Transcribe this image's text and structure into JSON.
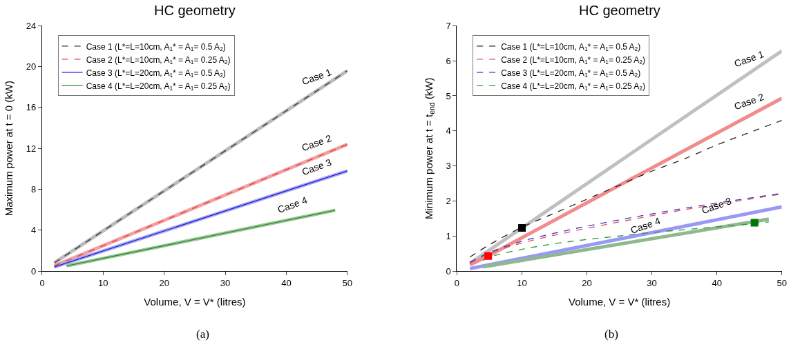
{
  "chart_data": [
    {
      "type": "line",
      "title": "HC geometry",
      "xlabel": "Volume, V = V* (litres)",
      "ylabel": "Maximum power at t = 0 (kW)",
      "xlim": [
        0,
        50
      ],
      "xticks": [
        0,
        10,
        20,
        30,
        40,
        50
      ],
      "ylim": [
        0,
        24
      ],
      "yticks": [
        0,
        4,
        8,
        12,
        16,
        20,
        24
      ],
      "legend": "top left",
      "annotations": [
        {
          "text": "Case 1",
          "x": 45,
          "y": 17.64
        },
        {
          "text": "Case 2",
          "x": 45,
          "y": 11.16
        },
        {
          "text": "Case 3",
          "x": 45,
          "y": 8.82
        },
        {
          "text": "Case 4",
          "x": 41,
          "y": 5.08
        },
        "(a)"
      ],
      "series": [
        {
          "color": "#bbbbbb",
          "x": [
            2,
            50
          ],
          "values": [
            0.8,
            19.6
          ]
        },
        {
          "color": "#f4a0a0",
          "x": [
            2,
            50
          ],
          "values": [
            0.5,
            12.4
          ]
        },
        {
          "color": "#a8a8f0",
          "x": [
            2,
            50
          ],
          "values": [
            0.4,
            9.8
          ]
        },
        {
          "color": "#9cc89c",
          "x": [
            4,
            48
          ],
          "values": [
            0.5,
            5.95
          ]
        },
        {
          "name": "Case 1 (L*=L=10cm, A$_{1}$* = A$_{1}$= 0.5 A$_{2}$)",
          "color": "#333333",
          "line_style": "dashed",
          "x": [
            2,
            50
          ],
          "values": [
            0.8,
            19.6
          ]
        },
        {
          "name": "Case 2 (L*=L=10cm, A$_{1}$* = A$_{1}$= 0.25 A$_{2}$)",
          "color": "#e04040",
          "line_style": "dashed",
          "x": [
            2,
            50
          ],
          "values": [
            0.5,
            12.4
          ]
        },
        {
          "name": "Case 3 (L*=L=20cm, A$_{1}$* = A$_{1}$= 0.5 A$_{2}$)",
          "color": "#2020dd",
          "line_style": "solid",
          "x": [
            2,
            50
          ],
          "values": [
            0.4,
            9.8
          ]
        },
        {
          "name": "Case 4 (L*=L=20cm, A$_{1}$* = A$_{1}$= 0.25 A$_{2}$)",
          "color": "#2e8b2e",
          "line_style": "solid",
          "x": [
            4,
            48
          ],
          "values": [
            0.5,
            5.95
          ]
        }
      ]
    },
    {
      "type": "line",
      "title": "HC geometry",
      "xlabel": "Volume, V = V* (litres)",
      "ylabel": "Minimum power at t = t$_{end}$ (kW)",
      "xlim": [
        0,
        50
      ],
      "xticks": [
        0,
        10,
        20,
        30,
        40,
        50
      ],
      "ylim": [
        0,
        7
      ],
      "yticks": [
        0,
        1,
        2,
        3,
        4,
        5,
        6,
        7
      ],
      "legend": "top left",
      "annotations": [
        {
          "text": "Case 1",
          "x": 45,
          "y": 5.65
        },
        {
          "text": "Case 2",
          "x": 45,
          "y": 4.43
        },
        {
          "text": "Case 3",
          "x": 40,
          "y": 1.46
        },
        {
          "text": "Case 4",
          "x": 29,
          "y": 0.89
        },
        "(b)"
      ],
      "series": [
        {
          "color": "#c0c0c0",
          "x": [
            2,
            10,
            30,
            50
          ],
          "values": [
            0.22,
            1.23,
            3.76,
            6.28
          ]
        },
        {
          "color": "#f28b8b",
          "x": [
            2,
            4.8,
            20,
            50
          ],
          "values": [
            0.18,
            0.43,
            1.95,
            4.93
          ]
        },
        {
          "color": "#9999f5",
          "x": [
            2,
            50
          ],
          "values": [
            0.07,
            1.83
          ]
        },
        {
          "color": "#8fb88f",
          "x": [
            4,
            48
          ],
          "values": [
            0.12,
            1.48
          ]
        },
        {
          "name": "Case 1 (L*=L=10cm, A$_{1}$* = A$_{1}$= 0.5 A$_{2}$)",
          "color": "#222222",
          "line_style": "dashed",
          "x": [
            2,
            5,
            10,
            15,
            20,
            25,
            30,
            35,
            40,
            45,
            50
          ],
          "values": [
            0.4,
            0.75,
            1.25,
            1.65,
            2.05,
            2.45,
            2.85,
            3.2,
            3.6,
            3.95,
            4.3
          ]
        },
        {
          "name": "Case 2 (L*=L=10cm, A$_{1}$* = A$_{1}$= 0.25 A$_{2}$)",
          "color": "#e05050",
          "line_style": "dashed",
          "x": [
            2,
            5,
            10,
            15,
            20,
            25,
            30,
            35,
            40,
            45,
            50
          ],
          "values": [
            0.22,
            0.5,
            0.8,
            1.02,
            1.22,
            1.4,
            1.58,
            1.75,
            1.9,
            2.05,
            2.2
          ]
        },
        {
          "name": "Case 3 (L*=L=20cm, A$_{1}$* = A$_{1}$= 0.5 A$_{2}$)",
          "color": "#3333cc",
          "line_style": "dashed",
          "x": [
            2,
            5,
            10,
            15,
            20,
            25,
            30,
            35,
            40,
            45,
            50
          ],
          "values": [
            0.25,
            0.53,
            0.85,
            1.08,
            1.28,
            1.46,
            1.63,
            1.79,
            1.94,
            2.08,
            2.22
          ]
        },
        {
          "name": "Case 4 (L*=L=20cm, A$_{1}$* = A$_{1}$= 0.25 A$_{2}$)",
          "color": "#339933",
          "line_style": "dashed",
          "x": [
            4,
            5,
            10,
            15,
            20,
            25,
            30,
            35,
            40,
            45,
            48
          ],
          "values": [
            0.3,
            0.4,
            0.62,
            0.78,
            0.9,
            1.0,
            1.1,
            1.18,
            1.26,
            1.34,
            1.4
          ]
        },
        {
          "type": "scatter",
          "marker": "square",
          "color": "#000000",
          "x": [
            10
          ],
          "values": [
            1.23
          ]
        },
        {
          "type": "scatter",
          "marker": "square",
          "color": "#ff0000",
          "x": [
            4.8
          ],
          "values": [
            0.43
          ]
        },
        {
          "type": "scatter",
          "marker": "square",
          "color": "#007700",
          "x": [
            45.8
          ],
          "values": [
            1.38
          ]
        }
      ]
    }
  ]
}
